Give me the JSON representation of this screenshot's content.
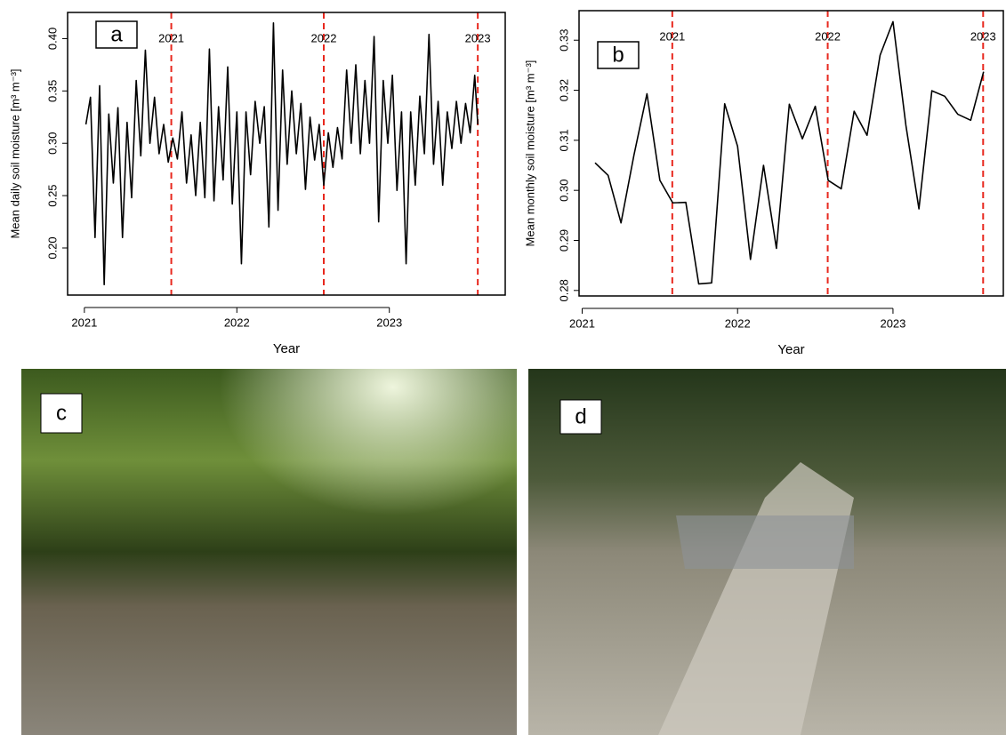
{
  "chart_data": [
    {
      "type": "line",
      "panel_label": "a",
      "y_label": "Mean daily soil moisture [m³ m⁻³]",
      "x_label": "Year",
      "color": "#000000",
      "x": [
        2021.01,
        2021.04,
        2021.07,
        2021.1,
        2021.13,
        2021.16,
        2021.19,
        2021.22,
        2021.25,
        2021.28,
        2021.31,
        2021.34,
        2021.37,
        2021.4,
        2021.43,
        2021.46,
        2021.49,
        2021.52,
        2021.55,
        2021.58,
        2021.61,
        2021.64,
        2021.67,
        2021.7,
        2021.73,
        2021.76,
        2021.79,
        2021.82,
        2021.85,
        2021.88,
        2021.91,
        2021.94,
        2021.97,
        2022.0,
        2022.03,
        2022.06,
        2022.09,
        2022.12,
        2022.15,
        2022.18,
        2022.21,
        2022.24,
        2022.27,
        2022.3,
        2022.33,
        2022.36,
        2022.39,
        2022.42,
        2022.45,
        2022.48,
        2022.51,
        2022.54,
        2022.57,
        2022.6,
        2022.63,
        2022.66,
        2022.69,
        2022.72,
        2022.75,
        2022.78,
        2022.81,
        2022.84,
        2022.87,
        2022.9,
        2022.93,
        2022.96,
        2022.99,
        2023.02,
        2023.05,
        2023.08,
        2023.11,
        2023.14,
        2023.17,
        2023.2,
        2023.23,
        2023.26,
        2023.29,
        2023.32,
        2023.35,
        2023.38,
        2023.41,
        2023.44,
        2023.47,
        2023.5,
        2023.53,
        2023.56,
        2023.58
      ],
      "values": [
        0.318,
        0.344,
        0.21,
        0.355,
        0.165,
        0.328,
        0.262,
        0.334,
        0.21,
        0.32,
        0.248,
        0.36,
        0.288,
        0.389,
        0.3,
        0.344,
        0.29,
        0.318,
        0.282,
        0.305,
        0.285,
        0.33,
        0.262,
        0.308,
        0.25,
        0.32,
        0.248,
        0.39,
        0.245,
        0.335,
        0.265,
        0.373,
        0.242,
        0.33,
        0.185,
        0.33,
        0.27,
        0.34,
        0.3,
        0.335,
        0.22,
        0.415,
        0.236,
        0.37,
        0.28,
        0.35,
        0.29,
        0.338,
        0.256,
        0.325,
        0.284,
        0.318,
        0.26,
        0.31,
        0.277,
        0.315,
        0.285,
        0.37,
        0.3,
        0.375,
        0.29,
        0.36,
        0.3,
        0.402,
        0.225,
        0.36,
        0.3,
        0.365,
        0.255,
        0.33,
        0.185,
        0.33,
        0.26,
        0.345,
        0.29,
        0.404,
        0.28,
        0.34,
        0.26,
        0.33,
        0.295,
        0.34,
        0.3,
        0.338,
        0.31,
        0.365,
        0.318
      ],
      "xlim": [
        2020.89,
        2023.76
      ],
      "xticks": [
        2021,
        2022,
        2023
      ],
      "ylim": [
        0.155,
        0.425
      ],
      "yticks": [
        {
          "value": 0.2,
          "label": "0.20"
        },
        0.25,
        {
          "value": 0.3,
          "label": "0.30"
        },
        0.35,
        {
          "value": 0.4,
          "label": "0.40"
        }
      ],
      "vlines": [
        {
          "x": 2021.57,
          "label": "2021"
        },
        {
          "x": 2022.57,
          "label": "2022"
        },
        {
          "x": 2023.58,
          "label": "2023"
        }
      ],
      "vline_color": "#e8281e"
    },
    {
      "type": "line",
      "panel_label": "b",
      "y_label": "Mean monthly soil moisture [m³ m⁻³]",
      "x_label": "Year",
      "color": "#000000",
      "x": [
        2021.083,
        2021.167,
        2021.25,
        2021.333,
        2021.417,
        2021.5,
        2021.583,
        2021.667,
        2021.75,
        2021.833,
        2021.917,
        2022.0,
        2022.083,
        2022.167,
        2022.25,
        2022.333,
        2022.417,
        2022.5,
        2022.583,
        2022.667,
        2022.75,
        2022.833,
        2022.917,
        2023.0,
        2023.083,
        2023.167,
        2023.25,
        2023.333,
        2023.417,
        2023.5,
        2023.583
      ],
      "values": [
        0.3055,
        0.303,
        0.2935,
        0.307,
        0.3193,
        0.302,
        0.2975,
        0.2976,
        0.2813,
        0.2815,
        0.3173,
        0.3088,
        0.2862,
        0.305,
        0.2884,
        0.3172,
        0.3103,
        0.3168,
        0.302,
        0.3003,
        0.3158,
        0.311,
        0.327,
        0.3337,
        0.313,
        0.2963,
        0.3199,
        0.3188,
        0.3152,
        0.314,
        0.3237
      ],
      "xlim": [
        2020.98,
        2023.71
      ],
      "xticks": [
        2021,
        2022,
        2023
      ],
      "ylim": [
        0.2789,
        0.3359
      ],
      "yticks": [
        0.28,
        0.29,
        {
          "value": 0.3,
          "label": "0.30"
        },
        0.31,
        0.32,
        0.33
      ],
      "vlines": [
        {
          "x": 2021.58,
          "label": "2021"
        },
        {
          "x": 2022.58,
          "label": "2022"
        },
        {
          "x": 2023.58,
          "label": "2023"
        }
      ],
      "vline_color": "#e8281e"
    }
  ],
  "photos": [
    {
      "label": "c"
    },
    {
      "label": "d"
    }
  ]
}
